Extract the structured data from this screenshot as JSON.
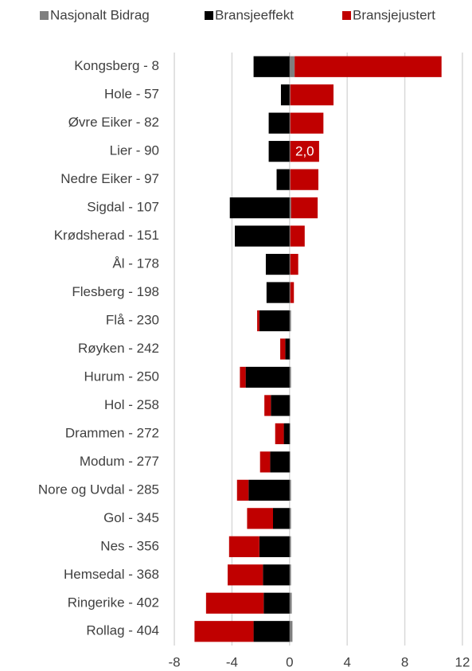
{
  "chart_data": {
    "type": "bar",
    "orientation": "horizontal",
    "stacked": true,
    "categories": [
      "Kongsberg - 8",
      "Hole - 57",
      "Øvre Eiker - 82",
      "Lier - 90",
      "Nedre Eiker - 97",
      "Sigdal - 107",
      "Krødsherad - 151",
      "Ål - 178",
      "Flesberg - 198",
      "Flå - 230",
      "Røyken - 242",
      "Hurum - 250",
      "Hol - 258",
      "Drammen - 272",
      "Modum - 277",
      "Nore og Uvdal - 285",
      "Gol - 345",
      "Nes - 356",
      "Hemsedal - 368",
      "Ringerike - 402",
      "Rollag - 404"
    ],
    "series": [
      {
        "name": "Nasjonalt Bidrag",
        "color": "#7f7f7f",
        "values": [
          0.35,
          0.05,
          0.05,
          0.05,
          0.05,
          0.1,
          0.05,
          0.05,
          0.05,
          0.1,
          0.05,
          0.1,
          0.05,
          0.05,
          0.05,
          0.1,
          0.1,
          0.1,
          0.1,
          0.15,
          0.2
        ]
      },
      {
        "name": "Bransjeeffekt",
        "color": "#000000",
        "values": [
          -2.5,
          -0.6,
          -1.45,
          -1.45,
          -0.9,
          -4.15,
          -3.8,
          -1.65,
          -1.6,
          -2.1,
          -0.3,
          -3.05,
          -1.3,
          -0.4,
          -1.35,
          -2.85,
          -1.15,
          -2.1,
          -1.85,
          -1.8,
          -2.5
        ]
      },
      {
        "name": "Bransjejustert",
        "color": "#c00000",
        "values": [
          10.2,
          3.0,
          2.3,
          2.0,
          1.95,
          1.85,
          1.0,
          0.55,
          0.25,
          -0.15,
          -0.35,
          -0.4,
          -0.45,
          -0.6,
          -0.7,
          -0.8,
          -1.8,
          -2.1,
          -2.45,
          -4.0,
          -4.1
        ],
        "value_labels": [
          null,
          null,
          null,
          "2,0",
          null,
          null,
          null,
          null,
          null,
          null,
          null,
          null,
          null,
          null,
          null,
          null,
          null,
          null,
          null,
          null,
          null
        ]
      }
    ],
    "xlim": [
      -8.5,
      12.5
    ],
    "xticks": [
      -8,
      -4,
      0,
      4,
      8,
      12
    ],
    "grid": true,
    "legend": "top"
  }
}
